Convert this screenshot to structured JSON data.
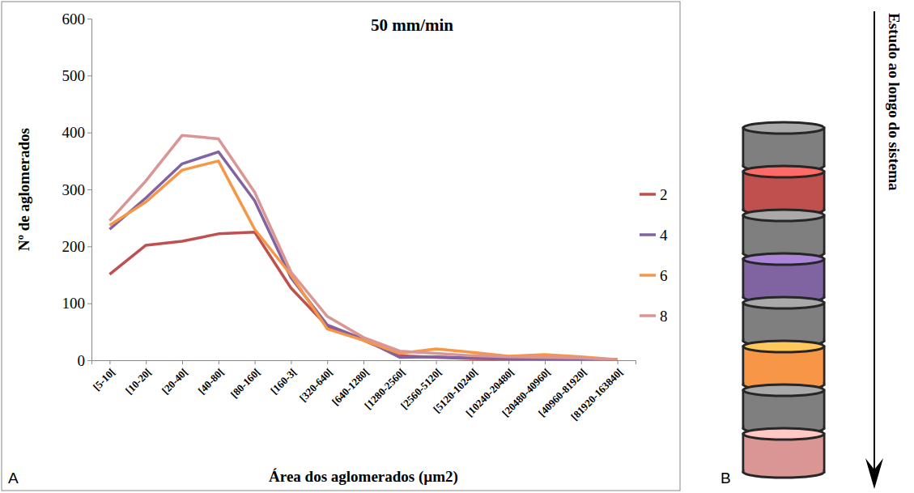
{
  "chart_data": {
    "type": "line",
    "title": "50 mm/min",
    "x_label": "Área dos aglomerados (µm2)",
    "y_label": "Nº de aglomerados",
    "categories": [
      "[5-10[",
      "[10-20[",
      "[20-40[",
      "[40-80[",
      "[80-160[",
      "[160-3[",
      "[320-640[",
      "[640-1280[",
      "[1280-2560[",
      "[2560-5120[",
      "[5120-10240[",
      "[10240-20480[",
      "[20480-40960[",
      "[40960-81920[",
      "[81920-163840["
    ],
    "series": [
      {
        "name": "2",
        "color": "#c0504d",
        "values": [
          151,
          202,
          209,
          222,
          225,
          127,
          60,
          35,
          8,
          5,
          3,
          2,
          3,
          2,
          1
        ]
      },
      {
        "name": "4",
        "color": "#8064a2",
        "values": [
          230,
          285,
          345,
          366,
          280,
          145,
          62,
          37,
          5,
          6,
          4,
          3,
          2,
          2,
          1
        ]
      },
      {
        "name": "6",
        "color": "#f79646",
        "values": [
          237,
          278,
          334,
          350,
          230,
          150,
          55,
          35,
          12,
          20,
          14,
          7,
          10,
          6,
          1
        ]
      },
      {
        "name": "8",
        "color": "#d99694",
        "values": [
          245,
          315,
          395,
          389,
          295,
          155,
          77,
          40,
          16,
          12,
          8,
          6,
          5,
          4,
          1
        ]
      }
    ],
    "ylim": [
      0,
      600
    ],
    "yticks": [
      0,
      100,
      200,
      300,
      400,
      500,
      600
    ],
    "grid": false,
    "legend": "right"
  },
  "panel_labels": [
    "A",
    "B"
  ],
  "diagram": {
    "arrow_label": "Estudo ao longo do sistema"
  }
}
